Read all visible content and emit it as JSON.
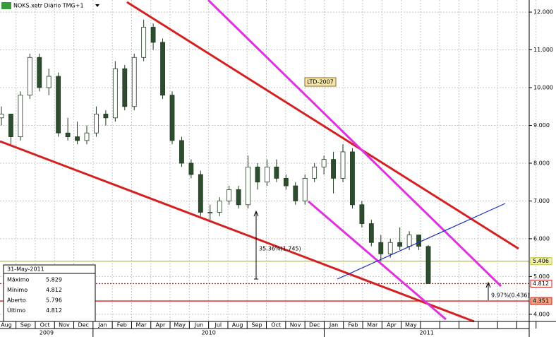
{
  "chart_data": {
    "type": "candlestick",
    "title": "NOKS.xetr Diário TMG+1",
    "categories": [
      "Aug",
      "Sep",
      "Oct",
      "Nov",
      "Dec",
      "Jan",
      "Feb",
      "Mar",
      "Apr",
      "May",
      "Jun",
      "Jul",
      "Aug",
      "Sep",
      "Oct",
      "Nov",
      "Dec",
      "Jan",
      "Feb",
      "Mar",
      "Apr",
      "May",
      null,
      null,
      null,
      null,
      null,
      null
    ],
    "years": [
      "2009",
      "2010",
      "2011"
    ],
    "ylim": [
      3.81,
      12.32
    ],
    "yticks": [
      {
        "value": 4,
        "label": "4.000"
      },
      {
        "value": 5,
        "label": "5.000"
      },
      {
        "value": 6,
        "label": "6.000"
      },
      {
        "value": 7,
        "label": "7.000"
      },
      {
        "value": 8,
        "label": "8.000"
      },
      {
        "value": 9,
        "label": "9.000"
      },
      {
        "value": 10,
        "label": "10.000"
      },
      {
        "value": 11,
        "label": "11.000"
      },
      {
        "value": 12,
        "label": "12.000"
      }
    ],
    "grid": true,
    "up_color": "#ffffff",
    "down_color": "#2e4d2e",
    "candles": [
      [
        9.2,
        9.5,
        9.0,
        9.3
      ],
      [
        9.3,
        9.3,
        8.5,
        8.7
      ],
      [
        8.7,
        9.9,
        8.6,
        9.8
      ],
      [
        9.8,
        10.9,
        9.7,
        10.8
      ],
      [
        10.8,
        10.9,
        9.9,
        10.0
      ],
      [
        10.0,
        10.5,
        9.8,
        10.3
      ],
      [
        10.3,
        10.4,
        8.7,
        8.8
      ],
      [
        8.8,
        9.2,
        8.6,
        8.7
      ],
      [
        8.7,
        9.1,
        8.5,
        8.6
      ],
      [
        8.6,
        9.0,
        8.5,
        8.8
      ],
      [
        8.8,
        9.5,
        8.7,
        9.3
      ],
      [
        9.3,
        9.4,
        9.0,
        9.2
      ],
      [
        9.2,
        10.7,
        9.1,
        10.5
      ],
      [
        10.5,
        10.6,
        9.4,
        9.5
      ],
      [
        9.5,
        10.9,
        9.4,
        10.8
      ],
      [
        10.8,
        11.8,
        10.7,
        11.6
      ],
      [
        11.6,
        11.7,
        11.0,
        11.2
      ],
      [
        11.2,
        11.3,
        9.7,
        9.8
      ],
      [
        9.8,
        9.9,
        8.5,
        8.6
      ],
      [
        8.6,
        8.7,
        7.9,
        8.0
      ],
      [
        8.0,
        8.1,
        7.6,
        7.7
      ],
      [
        7.7,
        7.8,
        6.6,
        6.7
      ],
      [
        6.7,
        6.9,
        6.5,
        6.7
      ],
      [
        6.7,
        7.1,
        6.6,
        7.0
      ],
      [
        7.0,
        7.4,
        6.9,
        7.3
      ],
      [
        7.3,
        7.4,
        6.8,
        6.9
      ],
      [
        6.9,
        8.2,
        6.8,
        7.9
      ],
      [
        7.9,
        8.0,
        7.3,
        7.5
      ],
      [
        7.5,
        8.1,
        7.4,
        7.9
      ],
      [
        7.9,
        8.1,
        7.5,
        7.6
      ],
      [
        7.6,
        7.7,
        7.3,
        7.4
      ],
      [
        7.4,
        7.5,
        6.9,
        7.0
      ],
      [
        7.0,
        7.7,
        6.9,
        7.6
      ],
      [
        7.6,
        8.0,
        7.5,
        7.9
      ],
      [
        7.9,
        8.2,
        7.7,
        8.1
      ],
      [
        8.1,
        8.3,
        7.2,
        7.6
      ],
      [
        7.6,
        8.5,
        7.5,
        8.3
      ],
      [
        8.3,
        8.4,
        6.8,
        6.9
      ],
      [
        6.9,
        7.0,
        6.3,
        6.4
      ],
      [
        6.4,
        6.5,
        5.8,
        5.9
      ],
      [
        5.9,
        6.1,
        5.4,
        5.6
      ],
      [
        5.6,
        6.0,
        5.5,
        5.9
      ],
      [
        5.9,
        6.3,
        5.7,
        5.8
      ],
      [
        5.8,
        6.2,
        5.7,
        6.1
      ],
      [
        6.1,
        6.1,
        5.7,
        5.8
      ],
      [
        5.796,
        5.829,
        4.812,
        4.812
      ]
    ],
    "levels": [
      {
        "value": 5.406,
        "color": "#b5cc3a",
        "label_bg": "#f4f0b0"
      },
      {
        "value": 4.812,
        "color": "#d42020",
        "label_bg": "#ffffff"
      },
      {
        "value": 4.351,
        "color": "#d42020",
        "label_bg": "#f4a080"
      }
    ],
    "annotations": [
      "LTD-2007",
      "35.36%(1.745)",
      "9.97%(0.436)"
    ],
    "info": {
      "date": "31-May-2011",
      "rows": [
        [
          "Máximo",
          "5.829"
        ],
        [
          "Mínimo",
          "4.812"
        ],
        [
          "Aberto",
          "5.796"
        ],
        [
          "Último",
          "4.812"
        ]
      ]
    }
  }
}
